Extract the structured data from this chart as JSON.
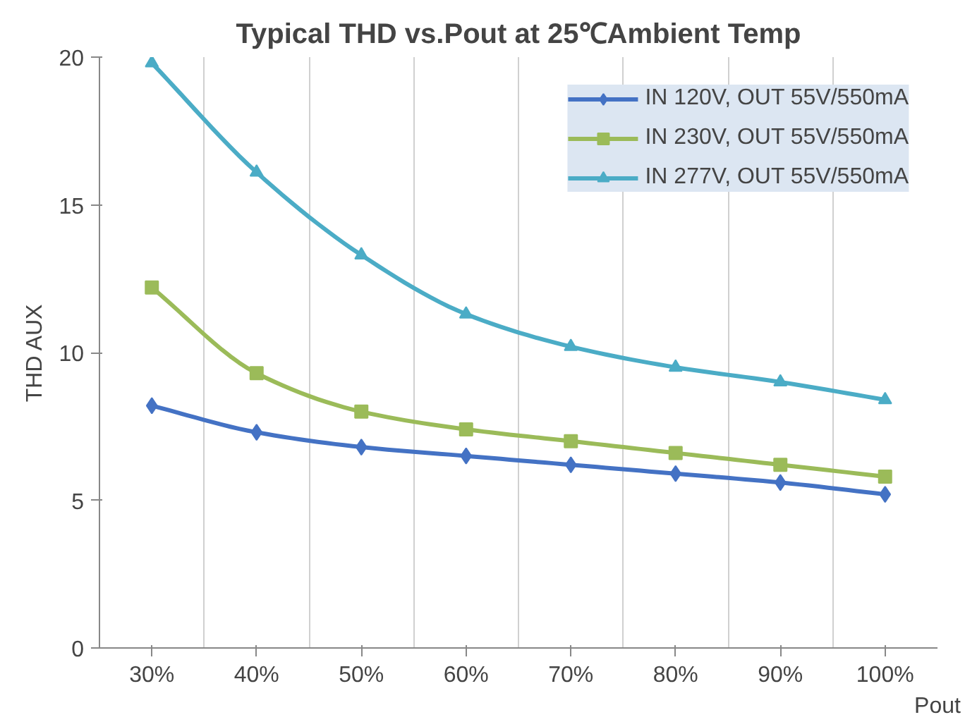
{
  "chart_data": {
    "type": "line",
    "title": "Typical THD vs.Pout at 25℃Ambient Temp",
    "xlabel": "Pout",
    "ylabel": "THD AUX",
    "categories": [
      "30%",
      "40%",
      "50%",
      "60%",
      "70%",
      "80%",
      "90%",
      "100%"
    ],
    "ylim": [
      0,
      20
    ],
    "yticks": [
      0,
      5,
      10,
      15,
      20
    ],
    "grid": "x",
    "legend": "top right",
    "series": [
      {
        "name": "IN 120V, OUT 55V/550mA",
        "color": "#4472c4",
        "marker": "diamond",
        "values": [
          8.2,
          7.3,
          6.8,
          6.5,
          6.2,
          5.9,
          5.6,
          5.2
        ]
      },
      {
        "name": "IN 230V, OUT 55V/550mA",
        "color": "#9bbb59",
        "marker": "square",
        "values": [
          12.2,
          9.3,
          8.0,
          7.4,
          7.0,
          6.6,
          6.2,
          5.8
        ]
      },
      {
        "name": "IN 277V, OUT 55V/550mA",
        "color": "#4bacc6",
        "marker": "triangle",
        "values": [
          19.8,
          16.1,
          13.3,
          11.3,
          10.2,
          9.5,
          9.0,
          8.4
        ]
      }
    ]
  }
}
